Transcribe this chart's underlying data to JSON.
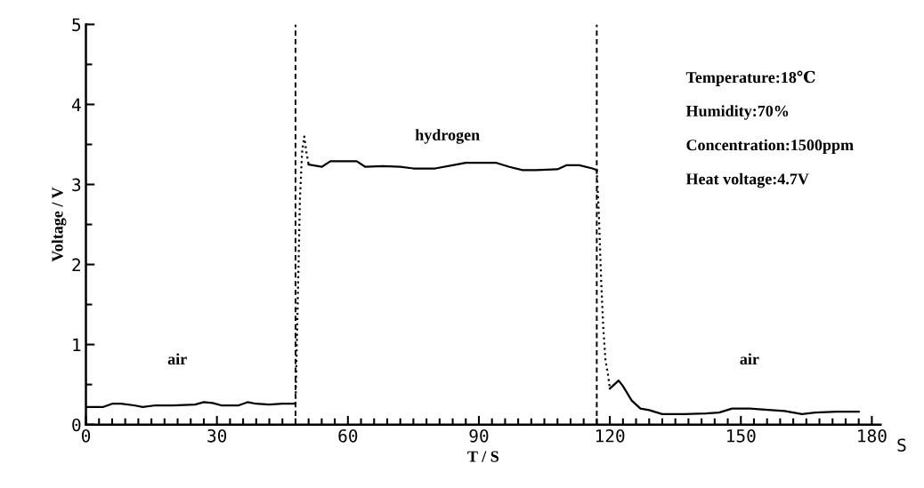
{
  "chart_data": {
    "type": "line",
    "xlabel": "T / S",
    "ylabel": "Voltage / V",
    "xlim": [
      0,
      182
    ],
    "xticks": [
      0,
      30,
      60,
      90,
      120,
      150,
      180
    ],
    "ylim": [
      0,
      5
    ],
    "yticks": [
      0,
      1,
      2,
      3,
      4,
      5
    ],
    "grid": false,
    "legend": false,
    "marker": "none",
    "series": [
      {
        "color": "#000000",
        "line_style": "solid",
        "x": [
          0,
          4,
          6,
          8,
          11,
          13,
          16,
          20,
          25,
          27,
          29,
          31,
          35,
          37,
          39,
          42,
          45,
          48
        ],
        "values": [
          0.22,
          0.22,
          0.26,
          0.26,
          0.24,
          0.22,
          0.24,
          0.24,
          0.25,
          0.28,
          0.27,
          0.24,
          0.24,
          0.28,
          0.26,
          0.25,
          0.26,
          0.26
        ]
      },
      {
        "color": "#000000",
        "line_style": "dotted",
        "x": [
          48,
          48.5,
          49,
          49.5,
          50,
          50.5,
          51
        ],
        "values": [
          0.26,
          1.5,
          2.8,
          3.4,
          3.6,
          3.4,
          3.25
        ]
      },
      {
        "color": "#000000",
        "line_style": "solid",
        "x": [
          51,
          54,
          56,
          62,
          64,
          68,
          72,
          75,
          80,
          84,
          87,
          94,
          97,
          100,
          103,
          108,
          110,
          113,
          116,
          117
        ],
        "values": [
          3.25,
          3.22,
          3.29,
          3.29,
          3.22,
          3.23,
          3.22,
          3.2,
          3.2,
          3.24,
          3.27,
          3.27,
          3.22,
          3.18,
          3.18,
          3.19,
          3.24,
          3.24,
          3.2,
          3.18
        ]
      },
      {
        "color": "#000000",
        "line_style": "dotted",
        "x": [
          117,
          117.5,
          118,
          118.5,
          119,
          119.5,
          120
        ],
        "values": [
          3.18,
          2.6,
          1.8,
          1.2,
          0.8,
          0.65,
          0.45
        ]
      },
      {
        "color": "#000000",
        "line_style": "solid",
        "x": [
          120,
          121,
          122,
          123,
          125,
          127,
          129,
          132,
          137,
          142,
          145,
          148,
          152,
          157,
          160,
          164,
          167,
          172,
          177
        ],
        "values": [
          0.45,
          0.5,
          0.55,
          0.48,
          0.3,
          0.2,
          0.18,
          0.13,
          0.13,
          0.14,
          0.15,
          0.2,
          0.2,
          0.18,
          0.17,
          0.13,
          0.15,
          0.16,
          0.16
        ]
      }
    ],
    "ref_lines": [
      {
        "axis": "x",
        "value": 48,
        "line_style": "dashed",
        "color": "#000000"
      },
      {
        "axis": "x",
        "value": 117,
        "line_style": "dashed",
        "color": "#000000"
      }
    ],
    "annotations": [
      "air",
      "hydrogen",
      "air",
      "Temperature:18℃",
      "Humidity:70%",
      "Concentration:1500ppm",
      "Heat voltage:4.7V",
      "S"
    ]
  }
}
